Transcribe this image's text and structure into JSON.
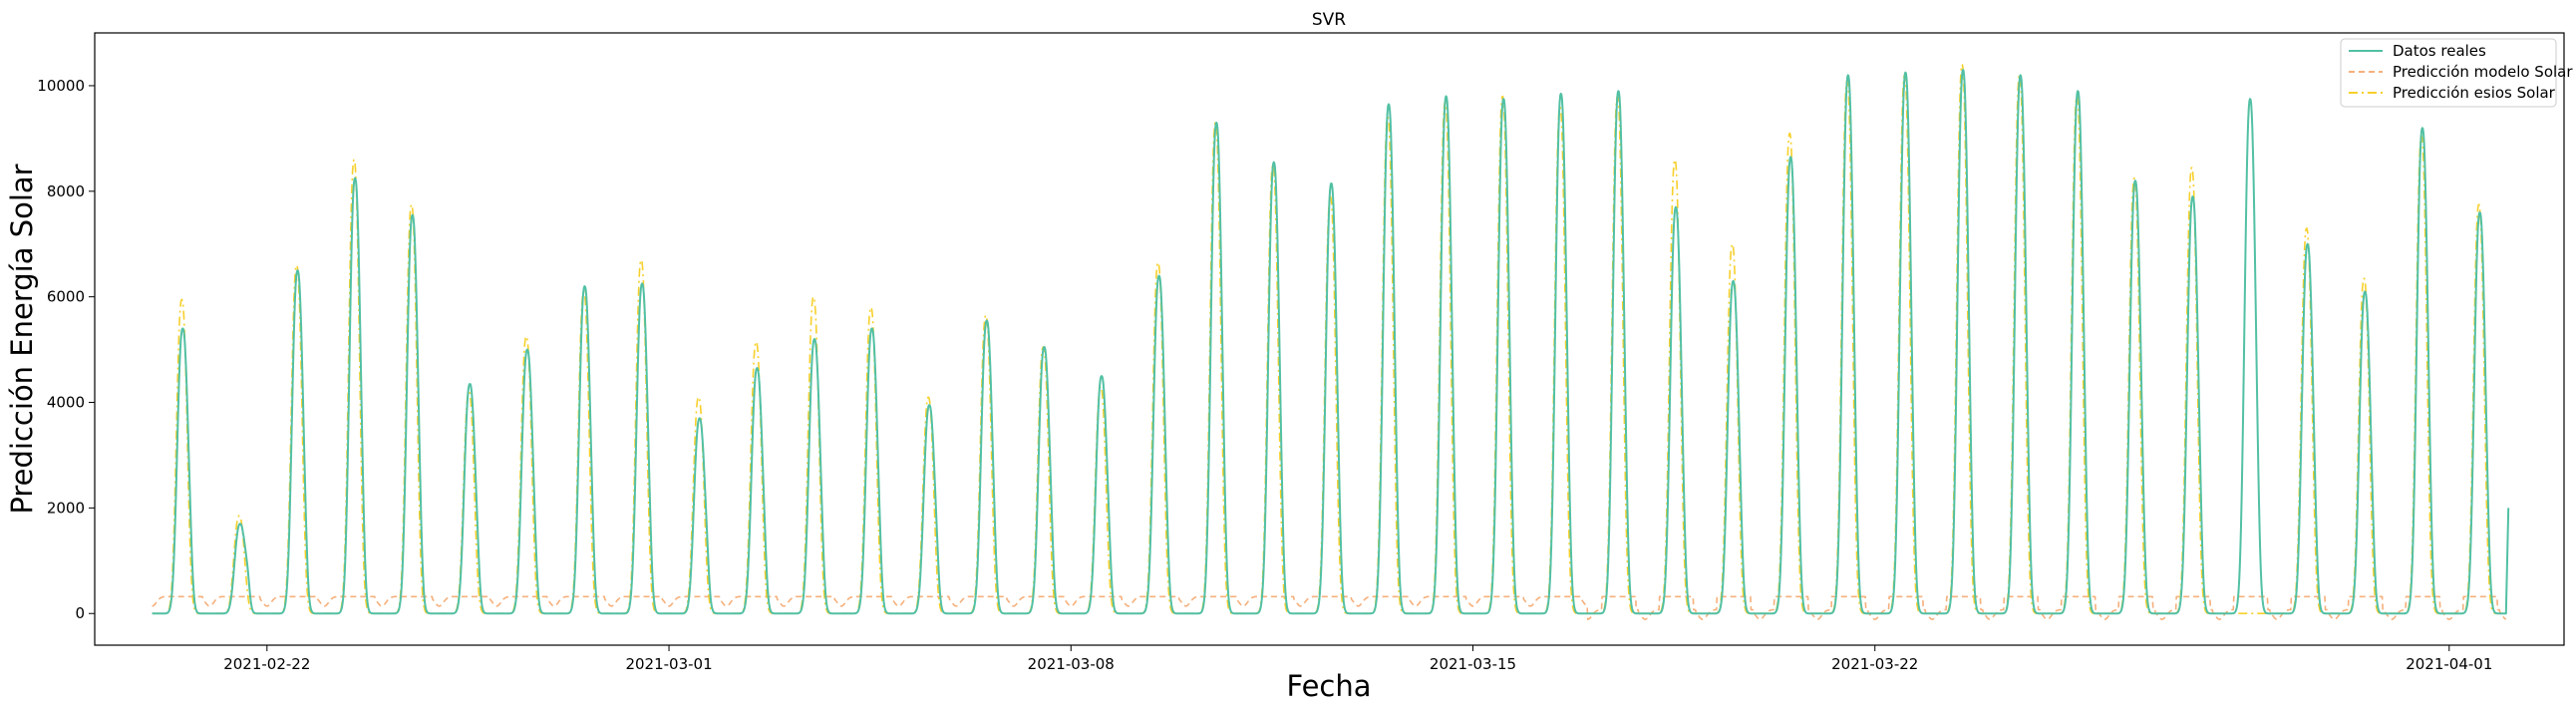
{
  "chart_data": {
    "type": "line",
    "title": "SVR",
    "xlabel": "Fecha",
    "ylabel": "Predicción Energía Solar",
    "xlim": [
      "2021-02-19",
      "2021-04-03"
    ],
    "ylim": [
      -600,
      11000
    ],
    "x_ticks": [
      "2021-02-22",
      "2021-03-01",
      "2021-03-08",
      "2021-03-15",
      "2021-03-22",
      "2021-04-01"
    ],
    "y_ticks": [
      0,
      2000,
      4000,
      6000,
      8000,
      10000
    ],
    "legend_position": "upper right",
    "start_date": "2021-02-20",
    "series": [
      {
        "name": "Datos reales",
        "color": "#52c0a4",
        "style": "solid",
        "daily_peaks": [
          5400,
          1700,
          6500,
          8250,
          7550,
          4350,
          5000,
          6200,
          6250,
          3700,
          4650,
          5200,
          5400,
          3950,
          5550,
          5050,
          4500,
          6400,
          9300,
          8550,
          8150,
          9650,
          9800,
          9750,
          9850,
          9900,
          7700,
          6300,
          8650,
          10200,
          10250,
          10300,
          10200,
          9900,
          8200,
          7900,
          9750,
          7000,
          6100,
          9200,
          7600
        ],
        "last_value": 2000
      },
      {
        "name": "Predicción modelo Solar",
        "color": "#f5b07c",
        "style": "dashed",
        "baseline": 320
      },
      {
        "name": "Predicción esios Solar",
        "color": "#f7d02c",
        "style": "dashdot",
        "daily_peaks": [
          5950,
          1850,
          6600,
          8600,
          7750,
          4200,
          5250,
          6100,
          6700,
          4100,
          5150,
          6000,
          5800,
          4100,
          5650,
          5050,
          4300,
          6650,
          9300,
          8500,
          7900,
          9400,
          9700,
          9800,
          9600,
          9800,
          8600,
          7000,
          9100,
          10100,
          10200,
          10400,
          10200,
          9800,
          8250,
          8450,
          0,
          7300,
          6350,
          9050,
          7750
        ]
      }
    ]
  }
}
